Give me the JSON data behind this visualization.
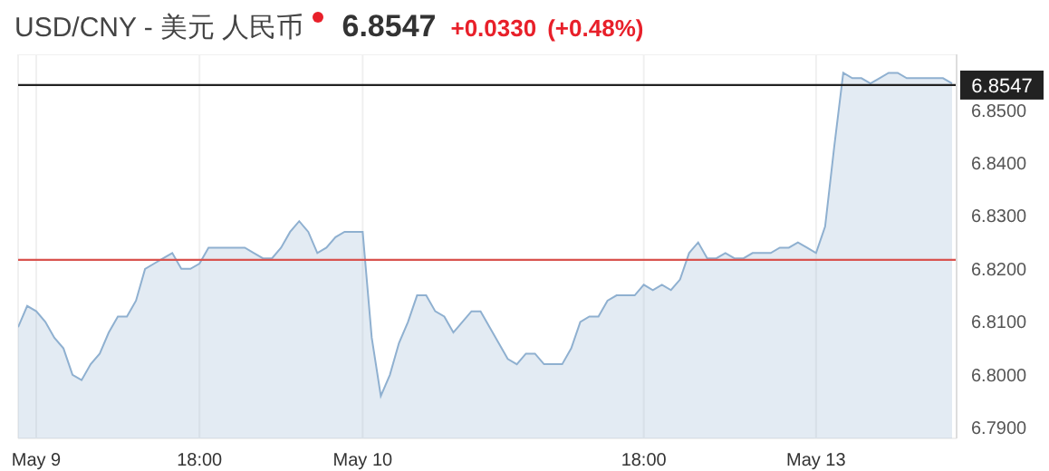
{
  "chart_data": {
    "type": "area",
    "title": "USD/CNY - 美元 人民币",
    "annotations": [
      "6.8547",
      "+0.0330",
      "(+0.48%)"
    ],
    "categories": [
      null,
      null,
      "May 9",
      null,
      null,
      null,
      null,
      null,
      null,
      null,
      null,
      null,
      null,
      null,
      null,
      null,
      null,
      null,
      null,
      null,
      "18:00",
      null,
      null,
      null,
      null,
      null,
      null,
      null,
      null,
      null,
      null,
      null,
      null,
      null,
      null,
      null,
      null,
      null,
      "May 10",
      null,
      null,
      null,
      null,
      null,
      null,
      null,
      null,
      null,
      null,
      null,
      null,
      null,
      null,
      null,
      null,
      null,
      null,
      null,
      null,
      null,
      null,
      null,
      null,
      null,
      null,
      null,
      null,
      null,
      null,
      "18:00",
      null,
      null,
      null,
      null,
      null,
      null,
      null,
      null,
      null,
      null,
      null,
      null,
      null,
      null,
      null,
      null,
      null,
      null,
      "May 13",
      null,
      null,
      null,
      null,
      null,
      null,
      null,
      null,
      null,
      null,
      null,
      null,
      null,
      null,
      null
    ],
    "series": [
      {
        "color": "#8fb0d0",
        "values": [
          6.809,
          6.813,
          6.812,
          6.81,
          6.807,
          6.805,
          6.8,
          6.799,
          6.802,
          6.804,
          6.808,
          6.811,
          6.811,
          6.814,
          6.82,
          6.821,
          6.822,
          6.823,
          6.82,
          6.82,
          6.821,
          6.824,
          6.824,
          6.824,
          6.824,
          6.824,
          6.823,
          6.822,
          6.822,
          6.824,
          6.827,
          6.829,
          6.827,
          6.823,
          6.824,
          6.826,
          6.827,
          6.827,
          6.827,
          6.807,
          6.796,
          6.8,
          6.806,
          6.81,
          6.815,
          6.815,
          6.812,
          6.811,
          6.808,
          6.81,
          6.812,
          6.812,
          6.809,
          6.806,
          6.803,
          6.802,
          6.804,
          6.804,
          6.802,
          6.802,
          6.802,
          6.805,
          6.81,
          6.811,
          6.811,
          6.814,
          6.815,
          6.815,
          6.815,
          6.817,
          6.816,
          6.817,
          6.816,
          6.818,
          6.823,
          6.825,
          6.822,
          6.822,
          6.823,
          6.822,
          6.822,
          6.823,
          6.823,
          6.823,
          6.824,
          6.824,
          6.825,
          6.824,
          6.823,
          6.828,
          6.843,
          6.857,
          6.856,
          6.856,
          6.855,
          6.856,
          6.857,
          6.857,
          6.856,
          6.856,
          6.856,
          6.856,
          6.856,
          6.855
        ]
      }
    ],
    "ylim": [
      6.788,
      6.8605
    ],
    "yticks": [
      {
        "value": 6.79,
        "label": "6.7900"
      },
      {
        "value": 6.8,
        "label": "6.8000"
      },
      {
        "value": 6.81,
        "label": "6.8100"
      },
      {
        "value": 6.82,
        "label": "6.8200"
      },
      {
        "value": 6.83,
        "label": "6.8300"
      },
      {
        "value": 6.84,
        "label": "6.8400"
      },
      {
        "value": 6.85,
        "label": "6.8500"
      }
    ],
    "ref_lines": [
      {
        "axis": "y",
        "value": 6.8547,
        "label": "6.8547",
        "color": "#222222"
      },
      {
        "axis": "y",
        "value": 6.8217,
        "color": "#d9534f"
      }
    ],
    "grid": true
  }
}
